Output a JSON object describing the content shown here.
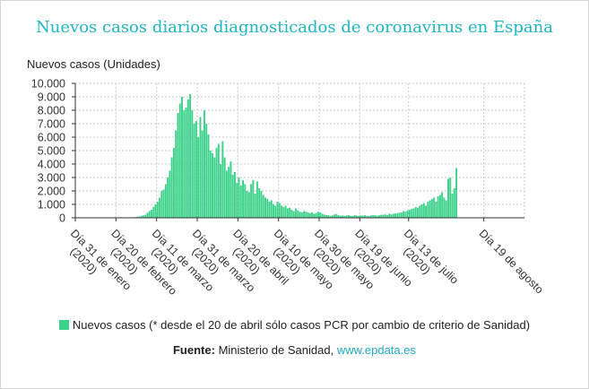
{
  "chart_data": {
    "type": "bar",
    "title": "Nuevos casos diarios diagnosticados de coronavirus en España",
    "ylabel": "Nuevos casos (Unidades)",
    "xlabel": "",
    "ylim": [
      0,
      10000
    ],
    "yticks": [
      0,
      1000,
      2000,
      3000,
      4000,
      5000,
      6000,
      7000,
      8000,
      9000,
      10000
    ],
    "ytick_labels": [
      "0",
      "1.000",
      "2.000",
      "3.000",
      "4.000",
      "5.000",
      "6.000",
      "7.000",
      "8.000",
      "9.000",
      "10.000"
    ],
    "xlim": [
      "2020-01-31",
      "2020-09-08"
    ],
    "xticks": [
      "2020-01-31",
      "2020-02-20",
      "2020-03-11",
      "2020-03-31",
      "2020-04-20",
      "2020-05-10",
      "2020-05-30",
      "2020-06-19",
      "2020-07-13",
      "2020-08-19"
    ],
    "xtick_labels": [
      [
        "Día 31 de enero",
        "(2020)"
      ],
      [
        "Día 20 de febrero",
        "(2020)"
      ],
      [
        "Día 11 de marzo",
        "(2020)"
      ],
      [
        "Día 31 de marzo",
        "(2020)"
      ],
      [
        "Día 20 de abril",
        "(2020)"
      ],
      [
        "Día 10 de mayo",
        "(2020)"
      ],
      [
        "Día 30 de mayo",
        "(2020)"
      ],
      [
        "Día 19 de junio",
        "(2020)"
      ],
      [
        "Día 13 de julio",
        "(2020)"
      ],
      [
        "Día 19 de agosto"
      ]
    ],
    "grid": true,
    "legend_position": "bottom",
    "bar_color": "#3dd28c",
    "series": [
      {
        "name": "Nuevos casos (* desde el 20 de abril sólo casos PCR por cambio de criterio de Sanidad)",
        "x_start": "2020-02-25",
        "values": [
          0,
          10,
          20,
          25,
          50,
          80,
          90,
          140,
          180,
          230,
          370,
          500,
          600,
          800,
          1000,
          1200,
          1500,
          2000,
          2100,
          2500,
          3000,
          3500,
          4500,
          5200,
          6500,
          7800,
          8500,
          9000,
          8000,
          8200,
          8800,
          9200,
          8000,
          7000,
          7200,
          6000,
          7500,
          6500,
          8000,
          7000,
          6200,
          5000,
          4800,
          4500,
          5200,
          5500,
          4000,
          5700,
          4500,
          3500,
          3800,
          4200,
          3200,
          3400,
          2600,
          3000,
          2400,
          2800,
          2500,
          2000,
          1900,
          2500,
          2800,
          1800,
          2700,
          2200,
          2000,
          1700,
          1500,
          1400,
          1200,
          1300,
          1000,
          900,
          1200,
          1100,
          900,
          800,
          900,
          700,
          750,
          600,
          500,
          700,
          550,
          450,
          400,
          500,
          450,
          400,
          350,
          400,
          300,
          350,
          450,
          400,
          300,
          250,
          200,
          200,
          150,
          180,
          250,
          280,
          200,
          160,
          180,
          150,
          180,
          200,
          150,
          140,
          200,
          160,
          150,
          180,
          170,
          200,
          150,
          130,
          180,
          200,
          190,
          150,
          180,
          220,
          230,
          250,
          200,
          300,
          250,
          300,
          320,
          350,
          380,
          400,
          500,
          450,
          550,
          600,
          650,
          700,
          800,
          750,
          900,
          1000,
          1100,
          900,
          1200,
          1300,
          1400,
          1500,
          1200,
          1600,
          1700,
          1900,
          1500,
          1300,
          2900,
          3000,
          1800,
          2200,
          3700
        ]
      }
    ]
  },
  "legend": {
    "label": "Nuevos casos (* desde el 20 de abril sólo casos PCR por cambio de criterio de Sanidad)"
  },
  "source": {
    "label": "Fuente:",
    "text": "Ministerio de Sanidad,",
    "link": "www.epdata.es"
  }
}
